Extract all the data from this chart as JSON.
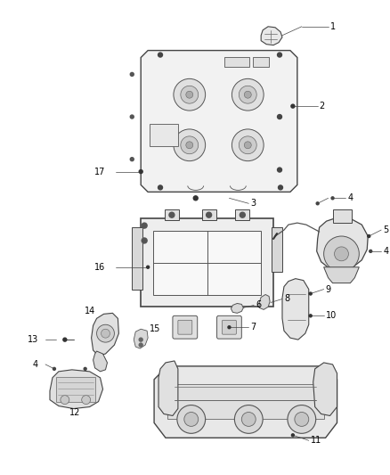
{
  "bg_color": "#ffffff",
  "fig_width": 4.38,
  "fig_height": 5.33,
  "dpi": 100,
  "label_fontsize": 7.0,
  "line_color": "#444444",
  "text_color": "#000000",
  "part_fill": "#f5f5f5",
  "part_edge": "#444444"
}
